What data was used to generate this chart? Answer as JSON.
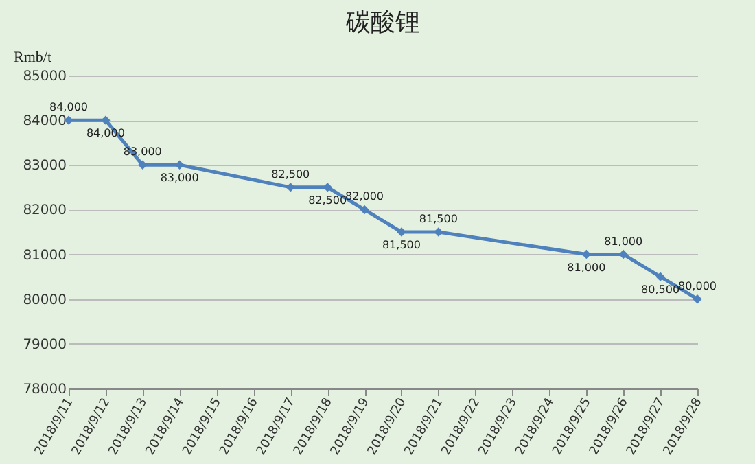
{
  "chart_data": {
    "type": "line",
    "title": "碳酸锂",
    "ylabel": "Rmb/t",
    "x": [
      "2018-09-11",
      "2018-09-12",
      "2018-09-13",
      "2018-09-14",
      "2018-09-17",
      "2018-09-18",
      "2018-09-19",
      "2018-09-20",
      "2018-09-21",
      "2018-09-25",
      "2018-09-26",
      "2018-09-27",
      "2018-09-28"
    ],
    "series": [
      {
        "color": "#4f81bd",
        "values": [
          84000,
          84000,
          83000,
          83000,
          82500,
          82500,
          82000,
          81500,
          81500,
          81000,
          81000,
          80500,
          80000
        ],
        "value_labels": [
          "84,000",
          "84,000",
          "83,000",
          "83,000",
          "82,500",
          "82,500",
          "82,000",
          "81,500",
          "81,500",
          "81,000",
          "81,000",
          "80,500",
          "80,000"
        ]
      }
    ],
    "xlim": [
      "2018-09-11",
      "2018-09-28"
    ],
    "xticks": [
      {
        "value": "2018-09-11",
        "label": "2018/9/11"
      },
      {
        "value": "2018-09-12",
        "label": "2018/9/12"
      },
      {
        "value": "2018-09-13",
        "label": "2018/9/13"
      },
      {
        "value": "2018-09-14",
        "label": "2018/9/14"
      },
      {
        "value": "2018-09-15",
        "label": "2018/9/15"
      },
      {
        "value": "2018-09-16",
        "label": "2018/9/16"
      },
      {
        "value": "2018-09-17",
        "label": "2018/9/17"
      },
      {
        "value": "2018-09-18",
        "label": "2018/9/18"
      },
      {
        "value": "2018-09-19",
        "label": "2018/9/19"
      },
      {
        "value": "2018-09-20",
        "label": "2018/9/20"
      },
      {
        "value": "2018-09-21",
        "label": "2018/9/21"
      },
      {
        "value": "2018-09-22",
        "label": "2018/9/22"
      },
      {
        "value": "2018-09-23",
        "label": "2018/9/23"
      },
      {
        "value": "2018-09-24",
        "label": "2018/9/24"
      },
      {
        "value": "2018-09-25",
        "label": "2018/9/25"
      },
      {
        "value": "2018-09-26",
        "label": "2018/9/26"
      },
      {
        "value": "2018-09-27",
        "label": "2018/9/27"
      },
      {
        "value": "2018-09-28",
        "label": "2018/9/28"
      }
    ],
    "ylim": [
      78000,
      85000
    ],
    "yticks": [
      78000,
      79000,
      80000,
      81000,
      82000,
      83000,
      84000,
      85000
    ],
    "grid": "y",
    "marker": "diamond",
    "line_style": "solid",
    "legend": false
  }
}
